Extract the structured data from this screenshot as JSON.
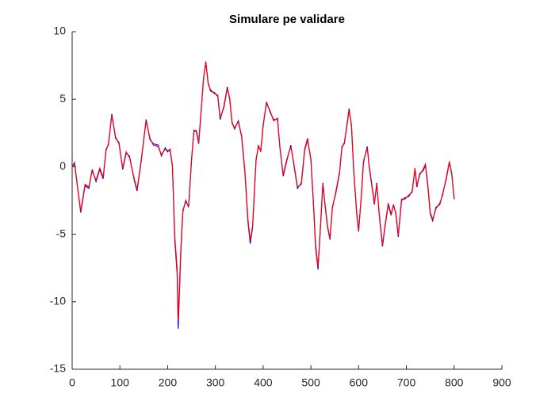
{
  "chart_data": {
    "type": "line",
    "title": "Simulare pe validare",
    "x": [
      0,
      5,
      18,
      27,
      35,
      42,
      50,
      58,
      65,
      71,
      76,
      83,
      91,
      98,
      106,
      113,
      120,
      130,
      136,
      145,
      155,
      163,
      170,
      180,
      187,
      195,
      200,
      205,
      210,
      215,
      220,
      222,
      228,
      232,
      238,
      244,
      250,
      255,
      260,
      265,
      270,
      275,
      280,
      285,
      290,
      298,
      305,
      310,
      318,
      325,
      330,
      335,
      340,
      348,
      355,
      362,
      368,
      373,
      378,
      385,
      390,
      395,
      400,
      407,
      415,
      422,
      430,
      435,
      442,
      450,
      458,
      465,
      472,
      480,
      487,
      493,
      500,
      505,
      510,
      515,
      520,
      525,
      530,
      535,
      540,
      545,
      552,
      560,
      565,
      570,
      575,
      580,
      585,
      590,
      596,
      600,
      606,
      610,
      618,
      622,
      628,
      633,
      638,
      643,
      650,
      657,
      662,
      668,
      673,
      678,
      683,
      690,
      697,
      705,
      712,
      718,
      722,
      728,
      735,
      740,
      745,
      750,
      755,
      762,
      770,
      776,
      783,
      790,
      795,
      800
    ],
    "series": [
      {
        "name": "blue",
        "color": "#0000ff",
        "values": [
          0,
          0.3,
          -3.4,
          -1.4,
          -1.6,
          -0.2,
          -1.1,
          -0.2,
          -0.9,
          1.3,
          1.6,
          3.9,
          2.1,
          1.8,
          -0.2,
          1.0,
          0.8,
          -1.0,
          -1.8,
          0.5,
          3.5,
          2.0,
          1.7,
          1.6,
          0.8,
          1.4,
          1.1,
          1.3,
          0,
          -5.5,
          -8,
          -12,
          -6,
          -3.3,
          -2.5,
          -3.0,
          0.5,
          2.7,
          2.6,
          1.7,
          4,
          6.5,
          7.7,
          6.2,
          5.6,
          5.5,
          5.2,
          3.5,
          4.5,
          5.9,
          5.0,
          3.3,
          2.8,
          3.4,
          2.2,
          -0.5,
          -4,
          -5.7,
          -4.5,
          0.5,
          1.5,
          1.2,
          3.0,
          4.8,
          4.0,
          3.5,
          3.5,
          1.5,
          -0.7,
          0.5,
          1.6,
          0,
          -1.6,
          -1.2,
          1.3,
          2.1,
          0.5,
          -2.5,
          -6,
          -7.6,
          -4.5,
          -1.2,
          -3,
          -4.5,
          -5.4,
          -3,
          -2,
          -0.5,
          1.5,
          1.7,
          3.0,
          4.3,
          3.0,
          -0.5,
          -3.5,
          -4.8,
          -2,
          0.3,
          1.5,
          0,
          -1.5,
          -2.8,
          -1.2,
          -3.5,
          -5.9,
          -4.0,
          -2.8,
          -3.6,
          -2.8,
          -3.5,
          -5.2,
          -2.5,
          -2.3,
          -2.2,
          -1.8,
          -0.2,
          -1.5,
          -0.5,
          -0.3,
          0.1,
          -1.5,
          -3.5,
          -4.0,
          -3.0,
          -2.8,
          -2.0,
          -1.0,
          0.3,
          -0.5,
          -2.4
        ]
      },
      {
        "name": "red",
        "color": "#ff0000",
        "values": [
          0,
          0.2,
          -3.3,
          -1.3,
          -1.5,
          -0.3,
          -1.0,
          -0.1,
          -0.8,
          1.2,
          1.7,
          3.8,
          2.2,
          1.7,
          -0.1,
          1.1,
          0.7,
          -0.9,
          -1.7,
          0.6,
          3.4,
          2.1,
          1.6,
          1.5,
          0.9,
          1.3,
          1.2,
          1.2,
          0.1,
          -5.2,
          -7.6,
          -11.4,
          -5.8,
          -3.2,
          -2.6,
          -2.9,
          0.6,
          2.6,
          2.7,
          1.8,
          4.1,
          6.4,
          7.8,
          6.1,
          5.7,
          5.4,
          5.3,
          3.6,
          4.4,
          5.8,
          5.1,
          3.2,
          2.9,
          3.3,
          2.3,
          -0.4,
          -3.8,
          -5.5,
          -4.4,
          0.4,
          1.6,
          1.1,
          3.1,
          4.7,
          4.1,
          3.4,
          3.6,
          1.4,
          -0.6,
          0.6,
          1.5,
          0.1,
          -1.5,
          -1.3,
          1.2,
          2.0,
          0.6,
          -2.4,
          -5.8,
          -7.4,
          -4.4,
          -1.3,
          -2.9,
          -4.4,
          -5.3,
          -3.1,
          -1.9,
          -0.4,
          1.4,
          1.8,
          2.9,
          4.2,
          3.1,
          -0.4,
          -3.4,
          -4.7,
          -2.1,
          0.4,
          1.4,
          0.1,
          -1.4,
          -2.7,
          -1.3,
          -3.4,
          -5.8,
          -3.9,
          -2.7,
          -3.5,
          -2.9,
          -3.4,
          -5.1,
          -2.4,
          -2.4,
          -2.1,
          -1.9,
          -0.1,
          -1.4,
          -0.6,
          -0.2,
          0.2,
          -1.4,
          -3.4,
          -3.9,
          -3.1,
          -2.7,
          -2.1,
          -0.9,
          0.4,
          -0.6,
          -2.3
        ]
      }
    ],
    "xlim": [
      0,
      900
    ],
    "xticks": [
      0,
      100,
      200,
      300,
      400,
      500,
      600,
      700,
      800,
      900
    ],
    "ylim": [
      -15,
      10
    ],
    "yticks": [
      -15,
      -10,
      -5,
      0,
      5,
      10
    ]
  }
}
